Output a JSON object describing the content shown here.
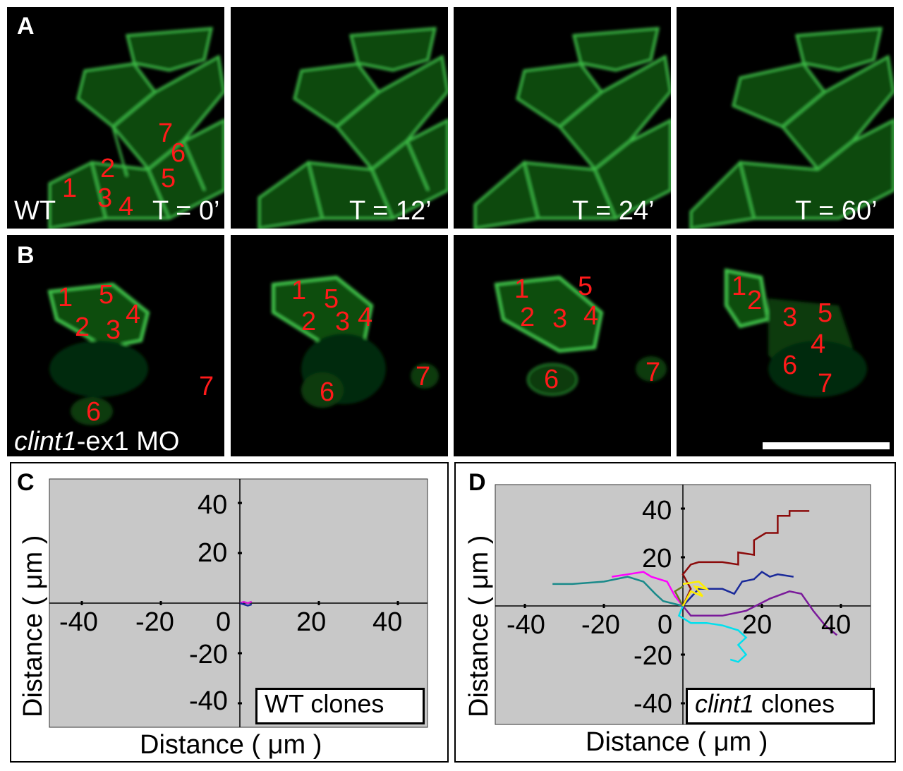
{
  "panels": {
    "A": {
      "letter": "A",
      "condition": "WT",
      "times": [
        "T = 0’",
        "T = 12’",
        "T = 24’",
        "T = 60’"
      ],
      "cell_labels_t0": [
        "1",
        "2",
        "3",
        "4",
        "5",
        "6",
        "7"
      ]
    },
    "B": {
      "letter": "B",
      "condition_italic": "clint1",
      "condition_rest": "-ex1 MO",
      "cell_labels": [
        "1",
        "2",
        "3",
        "4",
        "5",
        "6",
        "7"
      ]
    },
    "C": {
      "letter": "C",
      "legend": "WT clones",
      "xlabel": "Distance ( μm )",
      "ylabel": "Distance ( μm )",
      "xticks": [
        "-40",
        "-20",
        "0",
        "20",
        "40"
      ],
      "yticks": [
        "40",
        "20",
        "-20",
        "-40"
      ]
    },
    "D": {
      "letter": "D",
      "legend_italic": "clint1",
      "legend_rest": " clones",
      "xlabel": "Distance ( μm )",
      "ylabel": "Distance ( μm )",
      "xticks": [
        "-40",
        "-20",
        "0",
        "20",
        "40"
      ],
      "yticks": [
        "40",
        "20",
        "-20",
        "-40"
      ]
    }
  },
  "chart_data": [
    {
      "type": "line",
      "title": "",
      "legend": "WT clones",
      "xlabel": "Distance ( μm )",
      "ylabel": "Distance ( μm )",
      "xlim": [
        -50,
        50
      ],
      "ylim": [
        -50,
        50
      ],
      "series": [
        {
          "color": "#d81bd8",
          "points": [
            [
              0,
              0
            ],
            [
              1,
              0.5
            ],
            [
              2,
              0
            ],
            [
              3,
              0.6
            ]
          ]
        },
        {
          "color": "#1a2a9a",
          "points": [
            [
              0,
              0
            ],
            [
              1,
              -0.5
            ],
            [
              2,
              -1
            ],
            [
              3,
              -0.5
            ]
          ]
        }
      ]
    },
    {
      "type": "line",
      "title": "",
      "legend": "clint1 clones",
      "xlabel": "Distance ( μm )",
      "ylabel": "Distance ( μm )",
      "xlim": [
        -50,
        50
      ],
      "ylim": [
        -50,
        50
      ],
      "series": [
        {
          "color": "#8b0a0a",
          "points": [
            [
              0,
              0
            ],
            [
              2,
              7
            ],
            [
              0,
              13
            ],
            [
              2,
              17
            ],
            [
              4,
              18
            ],
            [
              10,
              18
            ],
            [
              14,
              17
            ],
            [
              14,
              22
            ],
            [
              18,
              21
            ],
            [
              18,
              27
            ],
            [
              21,
              30
            ],
            [
              24,
              30
            ],
            [
              24,
              37
            ],
            [
              27,
              37
            ],
            [
              27,
              39
            ],
            [
              32,
              39
            ]
          ]
        },
        {
          "color": "#1a2a9a",
          "points": [
            [
              0,
              0
            ],
            [
              4,
              7
            ],
            [
              10,
              7
            ],
            [
              13,
              5
            ],
            [
              15,
              10
            ],
            [
              18,
              11
            ],
            [
              20,
              14
            ],
            [
              22,
              12
            ],
            [
              24,
              13
            ],
            [
              28,
              12
            ]
          ]
        },
        {
          "color": "#7a1a9a",
          "points": [
            [
              0,
              0
            ],
            [
              2,
              -4
            ],
            [
              10,
              -4
            ],
            [
              16,
              -2
            ],
            [
              22,
              3
            ],
            [
              27,
              6
            ],
            [
              30,
              5
            ],
            [
              33,
              -2
            ],
            [
              36,
              -8
            ],
            [
              39,
              -12
            ]
          ]
        },
        {
          "color": "#00e0ee",
          "points": [
            [
              0,
              0
            ],
            [
              -1,
              -4
            ],
            [
              2,
              -7
            ],
            [
              6,
              -7
            ],
            [
              10,
              -8
            ],
            [
              14,
              -10
            ],
            [
              16,
              -13
            ],
            [
              14,
              -16
            ],
            [
              16,
              -20
            ],
            [
              14,
              -23
            ],
            [
              12,
              -22
            ]
          ]
        },
        {
          "color": "#1a8a8a",
          "points": [
            [
              0,
              0
            ],
            [
              -5,
              2
            ],
            [
              -7,
              5
            ],
            [
              -10,
              10
            ],
            [
              -14,
              12
            ],
            [
              -20,
              10
            ],
            [
              -28,
              9
            ],
            [
              -33,
              9
            ]
          ]
        },
        {
          "color": "#ff00ff",
          "points": [
            [
              0,
              0
            ],
            [
              -2,
              4
            ],
            [
              -4,
              10
            ],
            [
              -8,
              12
            ],
            [
              -10,
              14
            ],
            [
              -14,
              13
            ],
            [
              -18,
              12
            ]
          ]
        },
        {
          "color": "#6a7a20",
          "points": [
            [
              0,
              0
            ],
            [
              -1,
              3
            ],
            [
              -2,
              6
            ],
            [
              0,
              8
            ]
          ]
        },
        {
          "color": "#ffee00",
          "points": [
            [
              0,
              0
            ],
            [
              2,
              6
            ],
            [
              5,
              4
            ],
            [
              3,
              8
            ],
            [
              6,
              7
            ],
            [
              4,
              10
            ],
            [
              0,
              9
            ]
          ]
        }
      ]
    }
  ]
}
